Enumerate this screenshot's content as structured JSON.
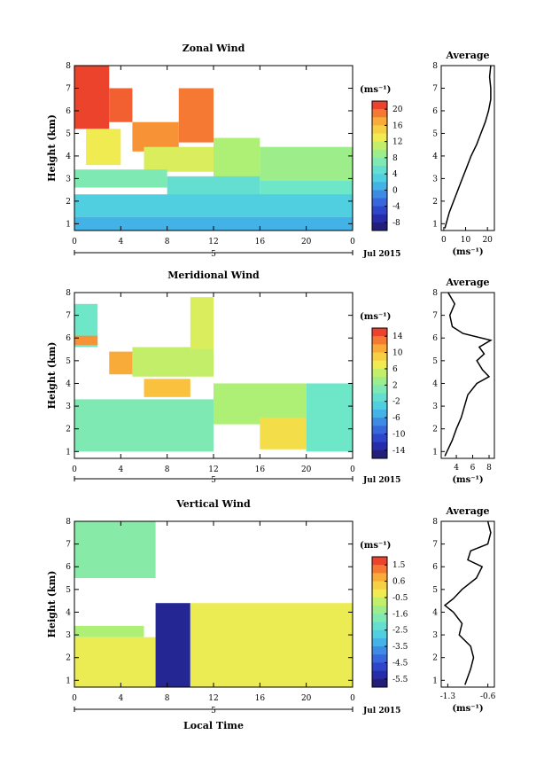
{
  "panels": [
    {
      "title": "Zonal Wind",
      "avg_title": "Average",
      "ylabel": "Height (km)",
      "unit": "(ms⁻¹)",
      "y_ticks": [
        "1",
        "2",
        "3",
        "4",
        "5",
        "6",
        "7",
        "8"
      ],
      "x_ticks": [
        "0",
        "4",
        "8",
        "12",
        "16",
        "20",
        "0"
      ],
      "date_label": "5",
      "month_label": "Jul 2015",
      "cbar_ticks": [
        "20",
        "16",
        "12",
        "8",
        "4",
        "0",
        "-4",
        "-8"
      ],
      "avg_x_ticks": [
        "0",
        "10",
        "20"
      ],
      "avg_xlabel": "(ms⁻¹)"
    },
    {
      "title": "Meridional Wind",
      "avg_title": "Average",
      "ylabel": "Height (km)",
      "unit": "(ms⁻¹)",
      "y_ticks": [
        "1",
        "2",
        "3",
        "4",
        "5",
        "6",
        "7",
        "8"
      ],
      "x_ticks": [
        "0",
        "4",
        "8",
        "12",
        "16",
        "20",
        "0"
      ],
      "date_label": "5",
      "month_label": "Jul 2015",
      "cbar_ticks": [
        "14",
        "10",
        "6",
        "2",
        "-2",
        "-6",
        "-10",
        "-14"
      ],
      "avg_x_ticks": [
        "4",
        "6",
        "8"
      ],
      "avg_xlabel": "(ms⁻¹)"
    },
    {
      "title": "Vertical Wind",
      "avg_title": "Average",
      "ylabel": "Height (km)",
      "unit": "(ms⁻¹)",
      "y_ticks": [
        "1",
        "2",
        "3",
        "4",
        "5",
        "6",
        "7",
        "8"
      ],
      "x_ticks": [
        "0",
        "4",
        "8",
        "12",
        "16",
        "20",
        "0"
      ],
      "date_label": "5",
      "month_label": "Jul 2015",
      "cbar_ticks": [
        "1.5",
        "0.6",
        "-0.5",
        "-1.6",
        "-2.5",
        "-3.5",
        "-4.5",
        "-5.5"
      ],
      "avg_x_ticks": [
        "-1.3",
        "-0.6"
      ],
      "avg_xlabel": "(ms⁻¹)"
    }
  ],
  "xlabel_bottom": "Local Time",
  "chart_data": [
    {
      "type": "heatmap",
      "title": "Zonal Wind",
      "ylabel": "Height (km)",
      "xlabel": "Local Time",
      "xlim": [
        0,
        24
      ],
      "ylim": [
        0.7,
        8
      ],
      "clim": [
        -10,
        22
      ],
      "regions": [
        {
          "x": [
            0,
            3
          ],
          "y": [
            5.2,
            8
          ],
          "value": 21
        },
        {
          "x": [
            3,
            5
          ],
          "y": [
            5.5,
            7.0
          ],
          "value": 20
        },
        {
          "x": [
            5,
            9
          ],
          "y": [
            4.2,
            5.5
          ],
          "value": 18
        },
        {
          "x": [
            9,
            12
          ],
          "y": [
            4.6,
            7.0
          ],
          "value": 19
        },
        {
          "x": [
            1,
            4
          ],
          "y": [
            3.6,
            5.2
          ],
          "value": 13
        },
        {
          "x": [
            6,
            12
          ],
          "y": [
            3.3,
            4.4
          ],
          "value": 12
        },
        {
          "x": [
            12,
            16
          ],
          "y": [
            3.0,
            4.8
          ],
          "value": 10
        },
        {
          "x": [
            16,
            24
          ],
          "y": [
            2.8,
            4.4
          ],
          "value": 9
        },
        {
          "x": [
            0,
            8
          ],
          "y": [
            2.6,
            3.4
          ],
          "value": 7
        },
        {
          "x": [
            8,
            16
          ],
          "y": [
            2.2,
            3.1
          ],
          "value": 5
        },
        {
          "x": [
            16,
            24
          ],
          "y": [
            2.2,
            2.9
          ],
          "value": 6
        },
        {
          "x": [
            0,
            24
          ],
          "y": [
            1.3,
            2.3
          ],
          "value": 3
        },
        {
          "x": [
            0,
            24
          ],
          "y": [
            0.7,
            1.3
          ],
          "value": 1
        }
      ],
      "average": {
        "height": [
          0.8,
          1.5,
          2.0,
          2.5,
          3.0,
          3.5,
          4.0,
          4.5,
          5.0,
          5.5,
          6.0,
          6.5,
          7.0,
          7.5,
          8.0
        ],
        "value": [
          0.5,
          2.5,
          4.5,
          6.5,
          8.5,
          10.5,
          12.5,
          15,
          17,
          19,
          20.5,
          21.5,
          21.5,
          21,
          21.5
        ]
      }
    },
    {
      "type": "heatmap",
      "title": "Meridional Wind",
      "ylabel": "Height (km)",
      "xlabel": "Local Time",
      "xlim": [
        0,
        24
      ],
      "ylim": [
        0.7,
        8
      ],
      "clim": [
        -16,
        16
      ],
      "regions": [
        {
          "x": [
            0,
            2
          ],
          "y": [
            5.6,
            7.5
          ],
          "value": 0
        },
        {
          "x": [
            0,
            2
          ],
          "y": [
            5.7,
            6.1
          ],
          "value": 12
        },
        {
          "x": [
            3,
            5
          ],
          "y": [
            4.4,
            5.4
          ],
          "value": 11
        },
        {
          "x": [
            6,
            10
          ],
          "y": [
            3.4,
            4.2
          ],
          "value": 10
        },
        {
          "x": [
            5,
            12
          ],
          "y": [
            4.3,
            5.6
          ],
          "value": 5
        },
        {
          "x": [
            10,
            12
          ],
          "y": [
            5.5,
            7.8
          ],
          "value": 6
        },
        {
          "x": [
            0,
            12
          ],
          "y": [
            1.0,
            3.3
          ],
          "value": 1
        },
        {
          "x": [
            12,
            20
          ],
          "y": [
            2.2,
            4.0
          ],
          "value": 4
        },
        {
          "x": [
            16,
            20
          ],
          "y": [
            1.1,
            2.5
          ],
          "value": 8
        },
        {
          "x": [
            20,
            24
          ],
          "y": [
            1.0,
            4.0
          ],
          "value": 0
        }
      ],
      "average": {
        "height": [
          0.8,
          1.5,
          2.0,
          2.5,
          3.0,
          3.5,
          4.0,
          4.3,
          4.6,
          5.0,
          5.3,
          5.6,
          5.9,
          6.2,
          6.5,
          7.0,
          7.5,
          8.0
        ],
        "value": [
          2.6,
          3.5,
          4.0,
          4.6,
          5.0,
          5.4,
          6.5,
          8.0,
          7.2,
          6.5,
          7.4,
          6.8,
          8.2,
          4.8,
          3.5,
          3.2,
          3.8,
          3.0
        ]
      }
    },
    {
      "type": "heatmap",
      "title": "Vertical Wind",
      "ylabel": "Height (km)",
      "xlabel": "Local Time",
      "xlim": [
        0,
        24
      ],
      "ylim": [
        0.7,
        8
      ],
      "clim": [
        -6,
        2
      ],
      "regions": [
        {
          "x": [
            0,
            7
          ],
          "y": [
            5.5,
            8
          ],
          "value": -1.6
        },
        {
          "x": [
            0,
            7
          ],
          "y": [
            0.7,
            2.9
          ],
          "value": -0.3
        },
        {
          "x": [
            7,
            10
          ],
          "y": [
            0.7,
            4.4
          ],
          "value": -5.5
        },
        {
          "x": [
            10,
            24
          ],
          "y": [
            0.7,
            4.4
          ],
          "value": -0.3
        },
        {
          "x": [
            0,
            6
          ],
          "y": [
            2.9,
            3.4
          ],
          "value": -1.0
        }
      ],
      "average": {
        "height": [
          0.8,
          1.5,
          2.0,
          2.5,
          3.0,
          3.5,
          4.0,
          4.3,
          4.6,
          5.0,
          5.5,
          6.0,
          6.3,
          6.7,
          7.0,
          7.5,
          8.0
        ],
        "value": [
          -1.0,
          -0.9,
          -0.85,
          -0.9,
          -1.1,
          -1.05,
          -1.2,
          -1.35,
          -1.2,
          -1.05,
          -0.8,
          -0.7,
          -0.95,
          -0.9,
          -0.6,
          -0.55,
          -0.6
        ]
      }
    }
  ]
}
